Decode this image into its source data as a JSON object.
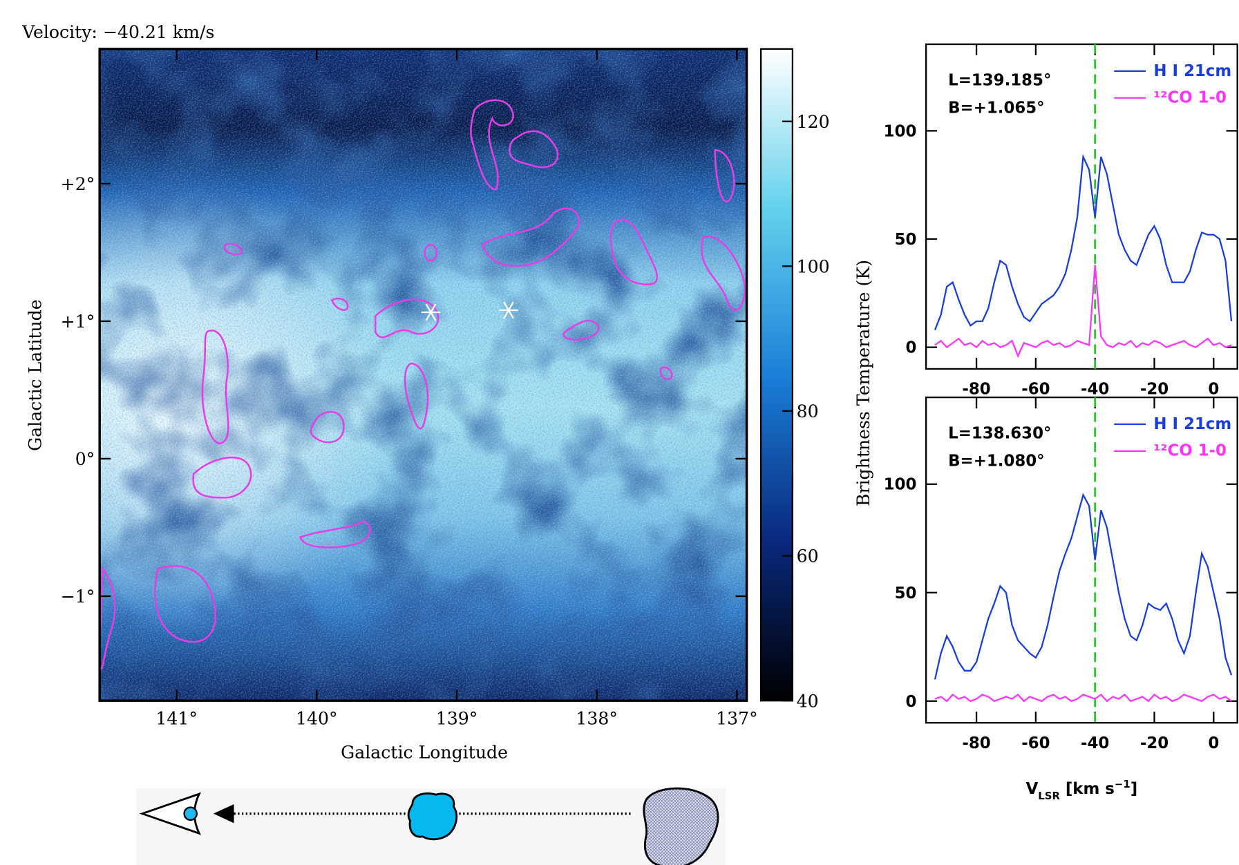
{
  "chart_data": [
    {
      "type": "map",
      "title": "Velocity: −40.21 km/s",
      "x_label": "Galactic Longitude",
      "y_label": "Galactic Latitude",
      "xlim": [
        141.55,
        136.93
      ],
      "ylim": [
        -1.76,
        2.98
      ],
      "xticks": [
        {
          "value": 141,
          "label": "141°"
        },
        {
          "value": 140,
          "label": "140°"
        },
        {
          "value": 139,
          "label": "139°"
        },
        {
          "value": 138,
          "label": "138°"
        },
        {
          "value": 137,
          "label": "137°"
        }
      ],
      "yticks": [
        {
          "value": 2,
          "label": "+2°"
        },
        {
          "value": 1,
          "label": "+1°"
        },
        {
          "value": 0,
          "label": "0°"
        },
        {
          "value": -1,
          "label": "−1°"
        }
      ],
      "markers": {
        "x": [
          139.185,
          138.63
        ],
        "y": [
          1.065,
          1.08
        ]
      },
      "colorbar": {
        "lim": [
          40,
          130
        ],
        "ticks": [
          40,
          60,
          80,
          100,
          120
        ]
      }
    },
    {
      "type": "line",
      "y_label": "Brightness Temperature (K)",
      "annotations": [
        "L=139.185°",
        "B=+1.065°"
      ],
      "x": [
        -94,
        -92,
        -90,
        -88,
        -86,
        -84,
        -82,
        -80,
        -78,
        -76,
        -74,
        -72,
        -70,
        -68,
        -66,
        -64,
        -62,
        -60,
        -58,
        -56,
        -54,
        -52,
        -50,
        -48,
        -46,
        -44,
        -42,
        -40,
        -38,
        -36,
        -34,
        -32,
        -30,
        -28,
        -26,
        -24,
        -22,
        -20,
        -18,
        -16,
        -14,
        -12,
        -10,
        -8,
        -6,
        -4,
        -2,
        0,
        2,
        4,
        6
      ],
      "series": [
        {
          "name": "H I 21cm",
          "color": "#1a3fd8",
          "values": [
            8,
            15,
            28,
            30,
            22,
            15,
            10,
            12,
            12,
            18,
            30,
            40,
            38,
            28,
            20,
            14,
            12,
            16,
            20,
            22,
            24,
            28,
            34,
            45,
            60,
            88,
            82,
            60,
            88,
            80,
            66,
            52,
            45,
            40,
            38,
            45,
            52,
            56,
            50,
            38,
            30,
            30,
            30,
            35,
            45,
            53,
            52,
            52,
            50,
            40,
            12
          ]
        },
        {
          "name": "¹²CO 1-0",
          "color": "#ff33ff",
          "values": [
            1,
            3,
            0,
            2,
            4,
            1,
            2,
            0,
            3,
            1,
            2,
            0,
            1,
            3,
            -4,
            2,
            1,
            0,
            2,
            3,
            1,
            2,
            0,
            1,
            3,
            2,
            1,
            38,
            5,
            1,
            0,
            2,
            1,
            3,
            0,
            2,
            1,
            3,
            2,
            0,
            1,
            2,
            3,
            1,
            0,
            2,
            4,
            1,
            2,
            0,
            1
          ]
        }
      ],
      "xlim": [
        -97,
        8
      ],
      "ylim": [
        -10,
        140
      ],
      "xticks": [
        -80,
        -60,
        -40,
        -20,
        0
      ],
      "yticks": [
        0,
        50,
        100
      ],
      "vline": -40
    },
    {
      "type": "line",
      "x_label": [
        "V",
        "LSR",
        " [km s",
        "−1",
        "]"
      ],
      "annotations": [
        "L=138.630°",
        "B=+1.080°"
      ],
      "x": [
        -94,
        -92,
        -90,
        -88,
        -86,
        -84,
        -82,
        -80,
        -78,
        -76,
        -74,
        -72,
        -70,
        -68,
        -66,
        -64,
        -62,
        -60,
        -58,
        -56,
        -54,
        -52,
        -50,
        -48,
        -46,
        -44,
        -42,
        -40,
        -38,
        -36,
        -34,
        -32,
        -30,
        -28,
        -26,
        -24,
        -22,
        -20,
        -18,
        -16,
        -14,
        -12,
        -10,
        -8,
        -6,
        -4,
        -2,
        0,
        2,
        4,
        6
      ],
      "series": [
        {
          "name": "H I 21cm",
          "color": "#1a3fd8",
          "values": [
            10,
            22,
            30,
            25,
            18,
            14,
            14,
            18,
            28,
            38,
            45,
            53,
            50,
            35,
            28,
            25,
            22,
            20,
            25,
            35,
            48,
            60,
            68,
            75,
            85,
            95,
            90,
            65,
            88,
            80,
            65,
            50,
            38,
            30,
            28,
            35,
            45,
            43,
            42,
            45,
            38,
            28,
            22,
            30,
            50,
            68,
            62,
            50,
            38,
            20,
            12
          ]
        },
        {
          "name": "¹²CO 1-0",
          "color": "#ff33ff",
          "values": [
            1,
            2,
            0,
            3,
            1,
            2,
            0,
            1,
            3,
            2,
            0,
            1,
            2,
            1,
            3,
            0,
            2,
            1,
            0,
            2,
            3,
            1,
            2,
            0,
            1,
            3,
            2,
            1,
            3,
            0,
            2,
            1,
            3,
            0,
            1,
            2,
            0,
            3,
            1,
            2,
            0,
            1,
            3,
            2,
            1,
            0,
            2,
            3,
            1,
            2,
            0
          ]
        }
      ],
      "xlim": [
        -97,
        8
      ],
      "ylim": [
        -10,
        140
      ],
      "xticks": [
        -80,
        -60,
        -40,
        -20,
        0
      ],
      "yticks": [
        0,
        50,
        100
      ],
      "vline": -40
    }
  ]
}
